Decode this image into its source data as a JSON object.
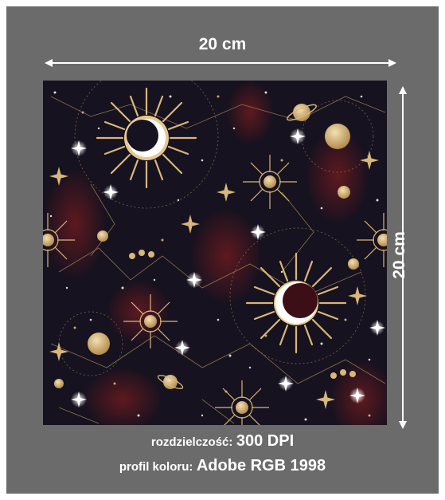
{
  "dimensions": {
    "width_label": "20 cm",
    "height_label": "20 cm"
  },
  "specs": {
    "resolution_label": "rozdzielczość:",
    "resolution_value": "300 DPI",
    "color_profile_label": "profil koloru:",
    "color_profile_value": "Adobe RGB 1998"
  },
  "artwork": {
    "description_icon": "celestial-pattern-image",
    "colors": {
      "background": "#17121f",
      "gold": "#d9b77a",
      "deep_red": "#5a1419",
      "white": "#ffffff"
    }
  }
}
